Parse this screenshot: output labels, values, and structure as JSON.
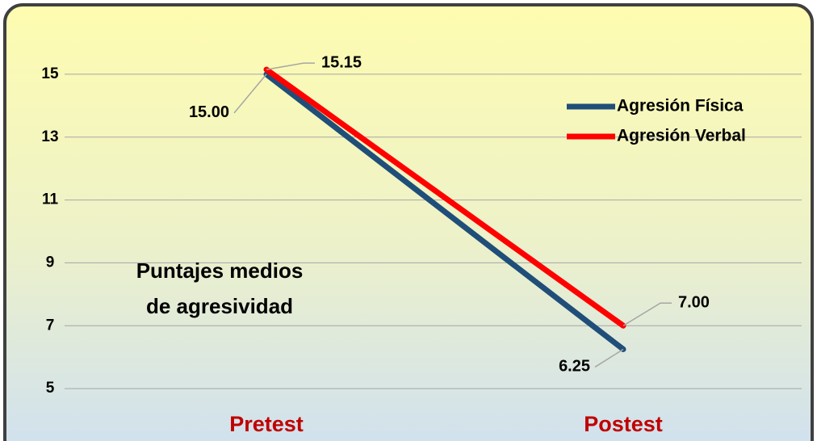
{
  "chart_data": {
    "type": "line",
    "categories": [
      "Pretest",
      "Postest"
    ],
    "series": [
      {
        "name": "Agresión Física",
        "color": "#1f4e79",
        "values": [
          15,
          6.25
        ],
        "value_labels": [
          "15.00",
          "6.25"
        ]
      },
      {
        "name": "Agresión Verbal",
        "color": "#ff0000",
        "values": [
          15.15,
          7
        ],
        "value_labels": [
          "15.15",
          "7.00"
        ]
      }
    ],
    "annotation": [
      "Puntajes medios",
      "de agresividad"
    ],
    "ylim": [
      4,
      16
    ],
    "yticks": [
      5,
      7,
      9,
      11,
      13,
      15
    ],
    "grid": true,
    "legend": "upper right"
  }
}
